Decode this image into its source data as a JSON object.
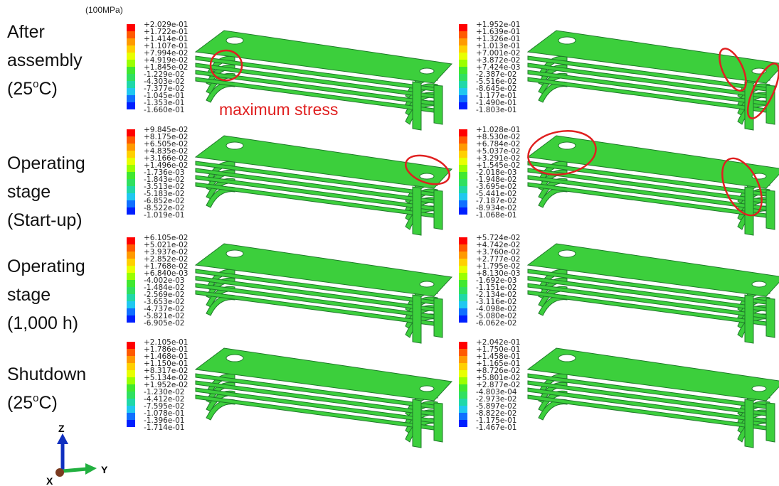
{
  "unit_note": "(100MPa)",
  "annotation": "maximum stress",
  "rows": [
    {
      "label": [
        "After",
        "assembly",
        {
          "text": "(25",
          "sup": "o",
          "tail": "C)"
        }
      ],
      "legends": [
        [
          "+2.029e-01",
          "+1.722e-01",
          "+1.414e-01",
          "+1.107e-01",
          "+7.994e-02",
          "+4.919e-02",
          "+1.845e-02",
          "-1.229e-02",
          "-4.303e-02",
          "-7.377e-02",
          "-1.045e-01",
          "-1.353e-01",
          "-1.660e-01"
        ],
        [
          "+1.952e-01",
          "+1.639e-01",
          "+1.326e-01",
          "+1.013e-01",
          "+7.001e-02",
          "+3.872e-02",
          "+7.424e-03",
          "-2.387e-02",
          "-5.516e-02",
          "-8.645e-02",
          "-1.177e-01",
          "-1.490e-01",
          "-1.803e-01"
        ]
      ]
    },
    {
      "label": [
        "Operating",
        "stage",
        "(Start-up)"
      ],
      "legends": [
        [
          "+9.845e-02",
          "+8.175e-02",
          "+6.505e-02",
          "+4.835e-02",
          "+3.166e-02",
          "+1.496e-02",
          "-1.736e-03",
          "-1.843e-02",
          "-3.513e-02",
          "-5.183e-02",
          "-6.852e-02",
          "-8.522e-02",
          "-1.019e-01"
        ],
        [
          "+1.028e-01",
          "+8.530e-02",
          "+6.784e-02",
          "+5.037e-02",
          "+3.291e-02",
          "+1.545e-02",
          "-2.018e-03",
          "-1.948e-02",
          "-3.695e-02",
          "-5.441e-02",
          "-7.187e-02",
          "-8.934e-02",
          "-1.068e-01"
        ]
      ]
    },
    {
      "label": [
        "Operating",
        "stage",
        "(1,000 h)"
      ],
      "legends": [
        [
          "+6.105e-02",
          "+5.021e-02",
          "+3.937e-02",
          "+2.852e-02",
          "+1.768e-02",
          "+6.840e-03",
          "-4.002e-03",
          "-1.484e-02",
          "-2.569e-02",
          "-3.653e-02",
          "-4.737e-02",
          "-5.821e-02",
          "-6.905e-02"
        ],
        [
          "+5.724e-02",
          "+4.742e-02",
          "+3.760e-02",
          "+2.777e-02",
          "+1.795e-02",
          "+8.130e-03",
          "-1.692e-03",
          "-1.151e-02",
          "-2.134e-02",
          "-3.116e-02",
          "-4.098e-02",
          "-5.080e-02",
          "-6.062e-02"
        ]
      ]
    },
    {
      "label": [
        "Shutdown",
        {
          "text": "(25",
          "sup": "o",
          "tail": "C)"
        }
      ],
      "legends": [
        [
          "+2.105e-01",
          "+1.786e-01",
          "+1.468e-01",
          "+1.150e-01",
          "+8.317e-02",
          "+5.134e-02",
          "+1.952e-02",
          "-1.230e-02",
          "-4.412e-02",
          "-7.595e-02",
          "-1.078e-01",
          "-1.396e-01",
          "-1.714e-01"
        ],
        [
          "+2.042e-01",
          "+1.750e-01",
          "+1.458e-01",
          "+1.165e-01",
          "+8.726e-02",
          "+5.801e-02",
          "+2.877e-02",
          "-4.803e-04",
          "-2.973e-02",
          "-5.897e-02",
          "-8.822e-02",
          "-1.175e-01",
          "-1.467e-01"
        ]
      ]
    }
  ],
  "axes": {
    "z": "Z",
    "y": "Y",
    "x": "X"
  }
}
